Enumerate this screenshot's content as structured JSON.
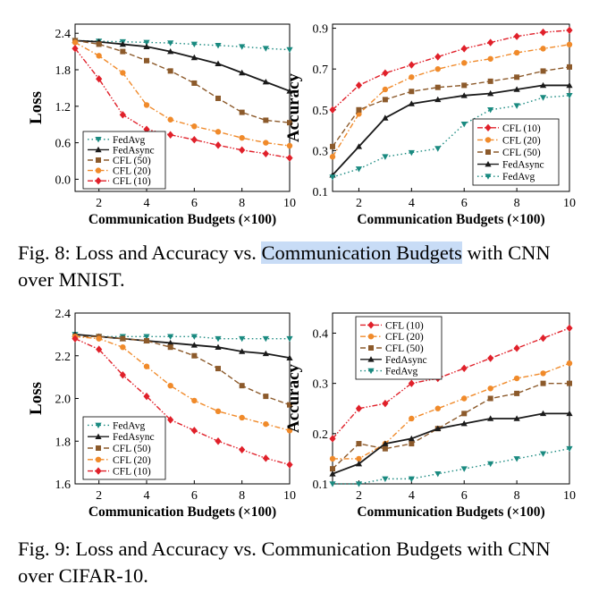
{
  "captions": {
    "fig8": {
      "prefix": "Fig. 8: Loss and Accuracy vs. ",
      "highlight": "Communication Budgets",
      "suffix": " with CNN over MNIST."
    },
    "fig9": {
      "text": "Fig. 9: Loss and Accuracy vs. Communication Budgets with CNN over CIFAR-10."
    }
  },
  "colors": {
    "FedAvg": "#1a8a80",
    "FedAsync": "#1a1a1a",
    "CFL (50)": "#8c5a2b",
    "CFL (20)": "#f08a2a",
    "CFL (10)": "#e0202a",
    "highlight": "#c8dcf6"
  },
  "chart_data": [
    {
      "id": "fig8-loss",
      "type": "line",
      "xlabel": "Communication Budgets (×100)",
      "ylabel": "Loss",
      "xlim": [
        1,
        10
      ],
      "ylim": [
        -0.2,
        2.55
      ],
      "xticks": [
        "2",
        "4",
        "6",
        "8",
        "10"
      ],
      "yticks": [
        "0.0",
        "0.6",
        "1.2",
        "1.8",
        "2.4"
      ],
      "legend_position": "bottom-left",
      "x": [
        1,
        2,
        3,
        4,
        5,
        6,
        7,
        8,
        9,
        10
      ],
      "series": [
        {
          "name": "FedAvg",
          "marker": "tri-down",
          "style": "dotted",
          "values": [
            2.28,
            2.27,
            2.26,
            2.25,
            2.24,
            2.22,
            2.2,
            2.18,
            2.15,
            2.13
          ]
        },
        {
          "name": "FedAsync",
          "marker": "tri-up",
          "style": "solid",
          "values": [
            2.28,
            2.26,
            2.22,
            2.18,
            2.1,
            2.0,
            1.9,
            1.75,
            1.6,
            1.45
          ]
        },
        {
          "name": "CFL (50)",
          "marker": "square",
          "style": "dashed",
          "values": [
            2.28,
            2.22,
            2.1,
            1.95,
            1.78,
            1.58,
            1.33,
            1.1,
            0.97,
            0.93
          ]
        },
        {
          "name": "CFL (20)",
          "marker": "circle",
          "style": "dashdot",
          "values": [
            2.25,
            2.03,
            1.75,
            1.22,
            0.98,
            0.87,
            0.78,
            0.68,
            0.6,
            0.55
          ]
        },
        {
          "name": "CFL (10)",
          "marker": "diamond",
          "style": "dashdotdot",
          "values": [
            2.15,
            1.65,
            1.06,
            0.82,
            0.73,
            0.65,
            0.56,
            0.48,
            0.42,
            0.35
          ]
        }
      ]
    },
    {
      "id": "fig8-acc",
      "type": "line",
      "xlabel": "Communication Budgets (×100)",
      "ylabel": "Accuracy",
      "xlim": [
        1,
        10
      ],
      "ylim": [
        0.1,
        0.92
      ],
      "xticks": [
        "2",
        "4",
        "6",
        "8",
        "10"
      ],
      "yticks": [
        "0.1",
        "0.3",
        "0.5",
        "0.7",
        "0.9"
      ],
      "legend_position": "bottom-right",
      "x": [
        1,
        2,
        3,
        4,
        5,
        6,
        7,
        8,
        9,
        10
      ],
      "series": [
        {
          "name": "CFL (10)",
          "marker": "diamond",
          "style": "dashdotdot",
          "values": [
            0.5,
            0.62,
            0.68,
            0.72,
            0.76,
            0.8,
            0.83,
            0.86,
            0.88,
            0.89
          ]
        },
        {
          "name": "CFL (20)",
          "marker": "circle",
          "style": "dashdot",
          "values": [
            0.27,
            0.48,
            0.6,
            0.66,
            0.7,
            0.73,
            0.75,
            0.78,
            0.8,
            0.82
          ]
        },
        {
          "name": "CFL (50)",
          "marker": "square",
          "style": "dashed",
          "values": [
            0.32,
            0.5,
            0.55,
            0.59,
            0.61,
            0.62,
            0.64,
            0.66,
            0.69,
            0.71
          ]
        },
        {
          "name": "FedAsync",
          "marker": "tri-up",
          "style": "solid",
          "values": [
            0.18,
            0.32,
            0.46,
            0.53,
            0.55,
            0.57,
            0.58,
            0.6,
            0.62,
            0.62
          ]
        },
        {
          "name": "FedAvg",
          "marker": "tri-down",
          "style": "dotted",
          "values": [
            0.17,
            0.21,
            0.27,
            0.29,
            0.31,
            0.43,
            0.5,
            0.52,
            0.56,
            0.57
          ]
        }
      ]
    },
    {
      "id": "fig9-loss",
      "type": "line",
      "xlabel": "Communication Budgets (×100)",
      "ylabel": "Loss",
      "xlim": [
        1,
        10
      ],
      "ylim": [
        1.6,
        2.4
      ],
      "xticks": [
        "2",
        "4",
        "6",
        "8",
        "10"
      ],
      "yticks": [
        "1.6",
        "1.8",
        "2.0",
        "2.2",
        "2.4"
      ],
      "legend_position": "bottom-left",
      "x": [
        1,
        2,
        3,
        4,
        5,
        6,
        7,
        8,
        9,
        10
      ],
      "series": [
        {
          "name": "FedAvg",
          "marker": "tri-down",
          "style": "dotted",
          "values": [
            2.3,
            2.29,
            2.29,
            2.29,
            2.29,
            2.29,
            2.28,
            2.28,
            2.28,
            2.28
          ]
        },
        {
          "name": "FedAsync",
          "marker": "tri-up",
          "style": "solid",
          "values": [
            2.3,
            2.29,
            2.28,
            2.27,
            2.26,
            2.25,
            2.24,
            2.22,
            2.21,
            2.19
          ]
        },
        {
          "name": "CFL (50)",
          "marker": "square",
          "style": "dashed",
          "values": [
            2.29,
            2.29,
            2.28,
            2.27,
            2.24,
            2.2,
            2.14,
            2.06,
            2.01,
            1.97
          ]
        },
        {
          "name": "CFL (20)",
          "marker": "circle",
          "style": "dashdot",
          "values": [
            2.29,
            2.28,
            2.24,
            2.15,
            2.06,
            1.99,
            1.94,
            1.91,
            1.88,
            1.85
          ]
        },
        {
          "name": "CFL (10)",
          "marker": "diamond",
          "style": "dashdotdot",
          "values": [
            2.28,
            2.23,
            2.11,
            2.01,
            1.9,
            1.85,
            1.8,
            1.76,
            1.72,
            1.69
          ]
        }
      ]
    },
    {
      "id": "fig9-acc",
      "type": "line",
      "xlabel": "Communication Budgets (×100)",
      "ylabel": "Accuracy",
      "xlim": [
        1,
        10
      ],
      "ylim": [
        0.1,
        0.44
      ],
      "xticks": [
        "2",
        "4",
        "6",
        "8",
        "10"
      ],
      "yticks": [
        "0.1",
        "0.2",
        "0.3",
        "0.4"
      ],
      "legend_position": "top-left",
      "x": [
        1,
        2,
        3,
        4,
        5,
        6,
        7,
        8,
        9,
        10
      ],
      "series": [
        {
          "name": "CFL (10)",
          "marker": "diamond",
          "style": "dashdotdot",
          "values": [
            0.19,
            0.25,
            0.26,
            0.3,
            0.31,
            0.33,
            0.35,
            0.37,
            0.39,
            0.41
          ]
        },
        {
          "name": "CFL (20)",
          "marker": "circle",
          "style": "dashdot",
          "values": [
            0.15,
            0.15,
            0.18,
            0.23,
            0.25,
            0.27,
            0.29,
            0.31,
            0.32,
            0.34
          ]
        },
        {
          "name": "CFL (50)",
          "marker": "square",
          "style": "dashed",
          "values": [
            0.13,
            0.18,
            0.17,
            0.18,
            0.21,
            0.24,
            0.27,
            0.28,
            0.3,
            0.3
          ]
        },
        {
          "name": "FedAsync",
          "marker": "tri-up",
          "style": "solid",
          "values": [
            0.12,
            0.14,
            0.18,
            0.19,
            0.21,
            0.22,
            0.23,
            0.23,
            0.24,
            0.24
          ]
        },
        {
          "name": "FedAvg",
          "marker": "tri-down",
          "style": "dotted",
          "values": [
            0.1,
            0.1,
            0.11,
            0.11,
            0.12,
            0.13,
            0.14,
            0.15,
            0.16,
            0.17
          ]
        }
      ]
    }
  ]
}
